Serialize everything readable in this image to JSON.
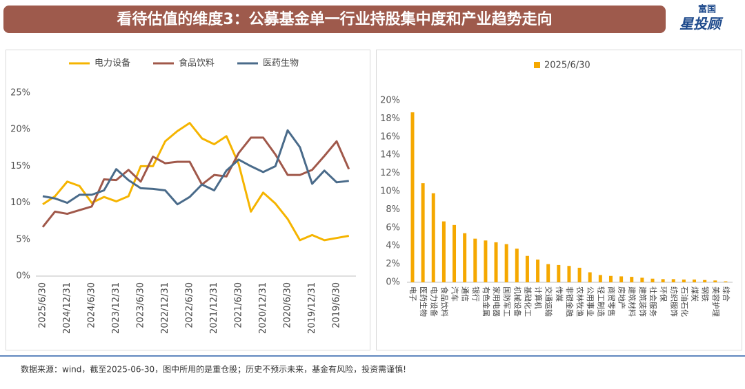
{
  "header": {
    "title": "看待估值的维度3：公募基金单一行业持股集中度和产业趋势走向"
  },
  "logo": {
    "line1": "富国",
    "line2": "星投顾"
  },
  "footer": {
    "source": "数据来源：wind，截至2025-06-30，图中所用的是重仓股；历史不预示未来，基金有风险，投资需谨慎!"
  },
  "chart_data": [
    {
      "type": "line",
      "categories": [
        "2025/6/30",
        null,
        "2024/12/31",
        null,
        "2024/6/30",
        null,
        "2023/12/31",
        null,
        "2023/6/30",
        null,
        "2022/12/31",
        null,
        "2022/6/30",
        null,
        "2021/12/31",
        null,
        "2021/6/30",
        null,
        "2020/12/31",
        null,
        "2020/6/30",
        null,
        "2019/12/31",
        null,
        "2019/6/30",
        null
      ],
      "series": [
        {
          "name": "电力设备",
          "color": "#f5b400",
          "values": [
            9.8,
            10.9,
            12.9,
            12.3,
            10.0,
            10.8,
            10.2,
            10.9,
            15.0,
            15.0,
            18.4,
            19.8,
            20.9,
            18.8,
            18.0,
            19.1,
            15.3,
            8.8,
            11.4,
            9.9,
            7.8,
            4.9,
            5.6,
            4.9,
            5.2,
            5.5
          ]
        },
        {
          "name": "食品饮料",
          "color": "#a0584a",
          "values": [
            6.7,
            8.8,
            8.5,
            9.0,
            9.5,
            13.2,
            13.1,
            14.5,
            12.9,
            16.3,
            15.4,
            15.6,
            15.6,
            12.5,
            13.8,
            13.6,
            16.8,
            18.9,
            18.9,
            16.6,
            13.8,
            13.8,
            14.5,
            16.4,
            18.4,
            14.6
          ]
        },
        {
          "name": "医药生物",
          "color": "#4a6b8a",
          "values": [
            10.9,
            10.6,
            10.0,
            11.1,
            11.1,
            11.7,
            14.6,
            13.1,
            12.0,
            11.9,
            11.7,
            9.8,
            10.8,
            12.5,
            11.7,
            14.4,
            15.9,
            15.0,
            14.2,
            15.0,
            19.9,
            17.6,
            12.6,
            14.4,
            12.8,
            13.0
          ]
        }
      ],
      "ylim": [
        0,
        25
      ],
      "yticks": [
        {
          "value": 0,
          "label": "0%"
        },
        {
          "value": 5,
          "label": "5%"
        },
        {
          "value": 10,
          "label": "10%"
        },
        {
          "value": 15,
          "label": "15%"
        },
        {
          "value": 20,
          "label": "20%"
        },
        {
          "value": 25,
          "label": "25%"
        }
      ]
    },
    {
      "type": "bar",
      "categories": [
        "电子",
        "医药生物",
        "电力设备",
        "食品饮料",
        "汽车",
        "通信",
        "银行",
        "有色金属",
        "家用电器",
        "国防军工",
        "机械设备",
        "基础化工",
        "计算机",
        "交通运输",
        "传媒",
        "非银金融",
        "农林牧渔",
        "公用事业",
        "轻工制造",
        "商贸零售",
        "房地产",
        "建筑材料",
        "建筑装饰",
        "社会服务",
        "环保",
        "纺织服饰",
        "石油石化",
        "煤炭",
        "钢铁",
        "美容护理",
        "综合"
      ],
      "series": [
        {
          "name": "2025/6/30",
          "color": "#f5a800",
          "values": [
            18.7,
            10.9,
            9.8,
            6.7,
            6.3,
            5.4,
            4.8,
            4.6,
            4.4,
            4.2,
            3.7,
            2.9,
            2.5,
            2.0,
            1.9,
            1.8,
            1.6,
            1.1,
            0.8,
            0.7,
            0.65,
            0.6,
            0.5,
            0.4,
            0.35,
            0.35,
            0.3,
            0.3,
            0.25,
            0.2,
            0.1
          ]
        }
      ],
      "ylim": [
        0,
        20
      ],
      "yticks": [
        {
          "value": 0,
          "label": "0%"
        },
        {
          "value": 2,
          "label": "2%"
        },
        {
          "value": 4,
          "label": "4%"
        },
        {
          "value": 6,
          "label": "6%"
        },
        {
          "value": 8,
          "label": "8%"
        },
        {
          "value": 10,
          "label": "10%"
        },
        {
          "value": 12,
          "label": "12%"
        },
        {
          "value": 14,
          "label": "14%"
        },
        {
          "value": 16,
          "label": "16%"
        },
        {
          "value": 18,
          "label": "18%"
        },
        {
          "value": 20,
          "label": "20%"
        }
      ]
    }
  ]
}
